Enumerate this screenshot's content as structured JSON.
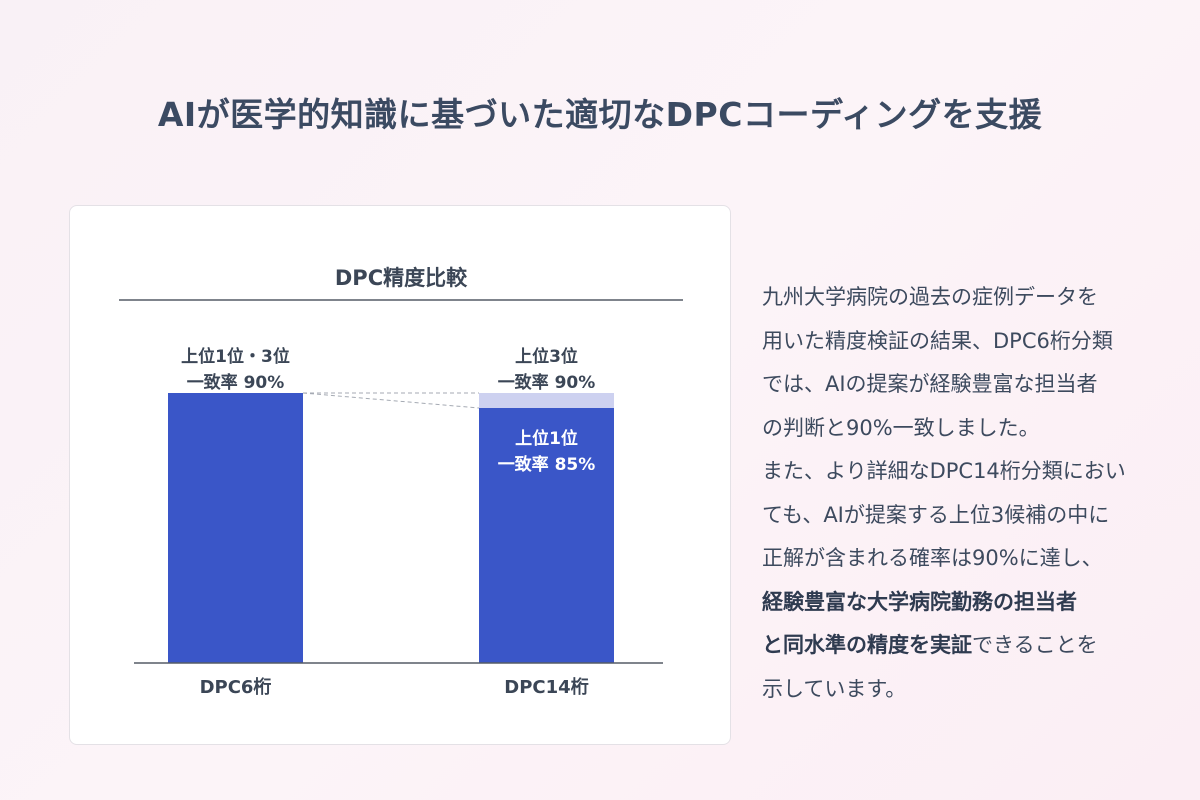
{
  "page_title": "AIが医学的知識に基づいた適切なDPCコーディングを支援",
  "chart_data": {
    "type": "bar",
    "title": "DPC精度比較",
    "categories": [
      "DPC6桁",
      "DPC14桁"
    ],
    "series": [
      {
        "name": "上位1位",
        "values": [
          90,
          85
        ]
      },
      {
        "name": "上位3位",
        "values": [
          90,
          90
        ]
      }
    ],
    "labels": [
      {
        "lines": [
          "上位1位・3位",
          "一致率 90%"
        ]
      },
      {
        "lines": [
          "上位3位",
          "一致率 90%"
        ]
      }
    ],
    "inner_label": {
      "lines": [
        "上位1位",
        "一致率 85%"
      ]
    },
    "ylim": [
      0,
      100
    ],
    "colors": {
      "primary": "#3a56c8",
      "secondary": "#cdd1f0",
      "axis": "#555c66",
      "text": "#3b4656"
    }
  },
  "description": {
    "lines": [
      [
        {
          "t": "九州大学病院の過去の症例データを"
        }
      ],
      [
        {
          "t": "用いた精度検証の結果、DPC6桁分類"
        }
      ],
      [
        {
          "t": "では、AIの提案が経験豊富な担当者"
        }
      ],
      [
        {
          "t": "の判断と90%一致しました。"
        }
      ],
      [
        {
          "t": "また、より詳細なDPC14桁分類におい"
        }
      ],
      [
        {
          "t": "ても、AIが提案する上位3候補の中に"
        }
      ],
      [
        {
          "t": "正解が含まれる確率は90%に達し、"
        }
      ],
      [
        {
          "t": "経験豊富な大学病院勤務の担当者",
          "bold": true
        }
      ],
      [
        {
          "t": "と同水準の精度を実証",
          "bold": true
        },
        {
          "t": "できることを"
        }
      ],
      [
        {
          "t": "示しています。"
        }
      ]
    ]
  }
}
